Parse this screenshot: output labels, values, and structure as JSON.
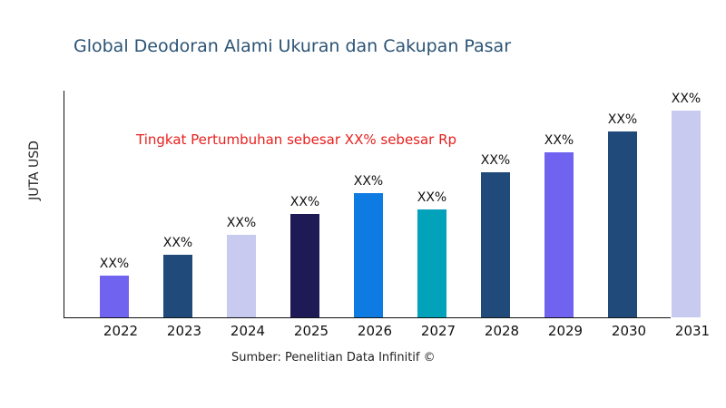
{
  "chart_data": {
    "type": "bar",
    "title": "Global Deodoran Alami Ukuran dan Cakupan Pasar",
    "ylabel": "JUTA USD",
    "xlabel": "",
    "annotation": "Tingkat Pertumbuhan sebesar XX% sebesar Rp",
    "source": "Sumber: Penelitian Data Infinitif ©",
    "categories": [
      "2022",
      "2023",
      "2024",
      "2025",
      "2026",
      "2027",
      "2028",
      "2029",
      "2030",
      "2031"
    ],
    "values": [
      46,
      69,
      91,
      114,
      137,
      119,
      160,
      182,
      205,
      228
    ],
    "data_labels": [
      "XX%",
      "XX%",
      "XX%",
      "XX%",
      "XX%",
      "XX%",
      "XX%",
      "XX%",
      "XX%",
      "XX%"
    ],
    "colors": [
      "#7063f0",
      "#1f4a7a",
      "#c9caf0",
      "#1e1a55",
      "#0e7be3",
      "#02a2bb",
      "#1f4a7a",
      "#7063f0",
      "#1f4a7a",
      "#c9caf0"
    ],
    "ylim": [
      0,
      250
    ],
    "grid": false,
    "legend": "none"
  }
}
